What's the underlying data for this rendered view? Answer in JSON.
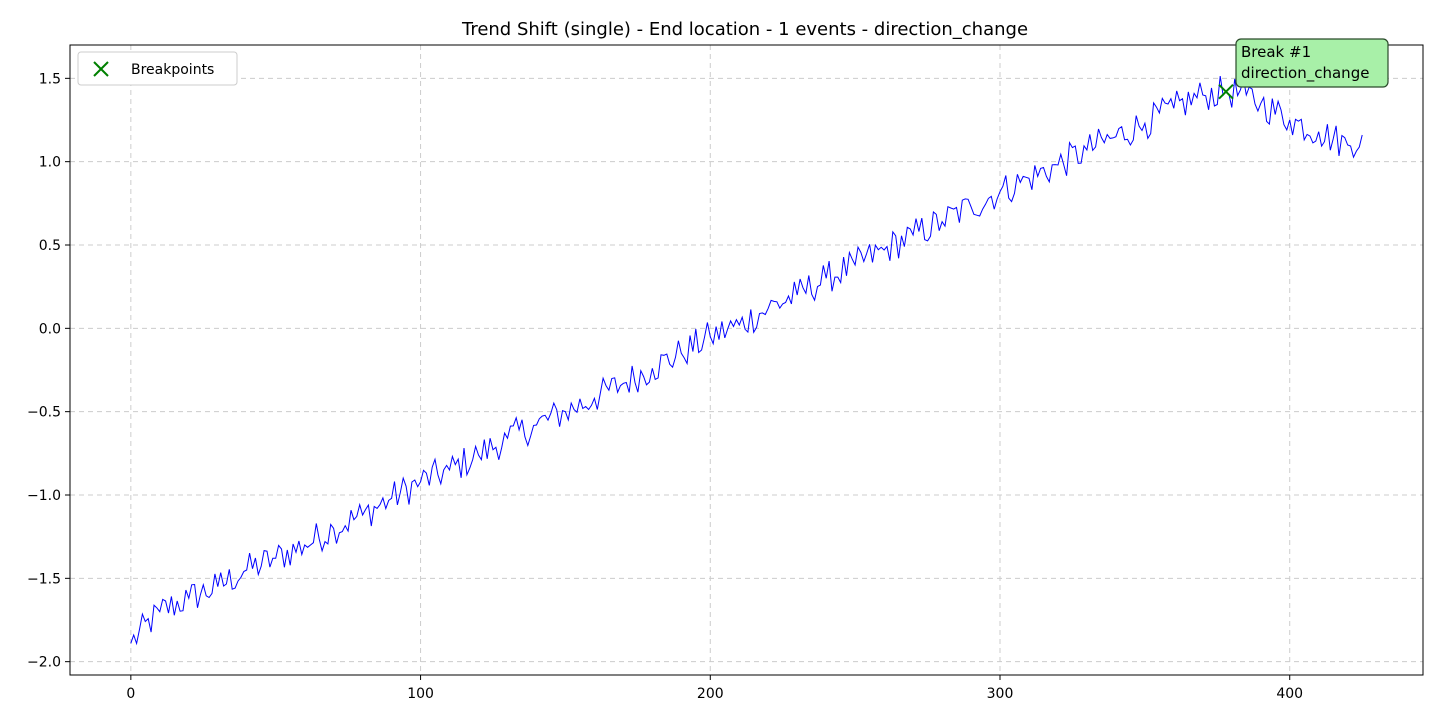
{
  "chart_data": {
    "type": "line",
    "title": "Trend Shift (single) - End location - 1 events - direction_change",
    "xlabel": "",
    "ylabel": "",
    "xlim": [
      -21,
      446
    ],
    "ylim": [
      -2.08,
      1.7
    ],
    "x_ticks": [
      0,
      100,
      200,
      300,
      400
    ],
    "y_ticks": [
      -2.0,
      -1.5,
      -1.0,
      -0.5,
      0.0,
      0.5,
      1.0,
      1.5
    ],
    "grid": true,
    "legend_placement": "upper-left",
    "series": [
      {
        "color": "#0000ff",
        "x": [
          0,
          10,
          20,
          30,
          40,
          50,
          60,
          70,
          80,
          90,
          100,
          110,
          120,
          130,
          140,
          150,
          160,
          170,
          180,
          190,
          200,
          210,
          220,
          230,
          240,
          250,
          260,
          270,
          280,
          290,
          300,
          310,
          320,
          330,
          340,
          350,
          360,
          370,
          378,
          385,
          390,
          400,
          410,
          420,
          425
        ],
        "y": [
          -1.89,
          -1.7,
          -1.62,
          -1.55,
          -1.45,
          -1.38,
          -1.3,
          -1.2,
          -1.12,
          -1.02,
          -0.92,
          -0.85,
          -0.76,
          -0.66,
          -0.58,
          -0.5,
          -0.42,
          -0.33,
          -0.24,
          -0.15,
          -0.05,
          0.02,
          0.12,
          0.2,
          0.3,
          0.38,
          0.47,
          0.56,
          0.64,
          0.73,
          0.82,
          0.9,
          0.98,
          1.07,
          1.15,
          1.23,
          1.32,
          1.4,
          1.42,
          1.4,
          1.35,
          1.25,
          1.18,
          1.1,
          1.16
        ]
      }
    ],
    "breakpoints": {
      "label": "Breakpoints",
      "color": "#008000",
      "points": [
        {
          "x": 378,
          "y": 1.42
        }
      ]
    },
    "annotations": [
      {
        "x": 378,
        "y": 1.42,
        "line1": "Break #1",
        "line2": "direction_change",
        "background": "#a8f0a8"
      }
    ]
  }
}
